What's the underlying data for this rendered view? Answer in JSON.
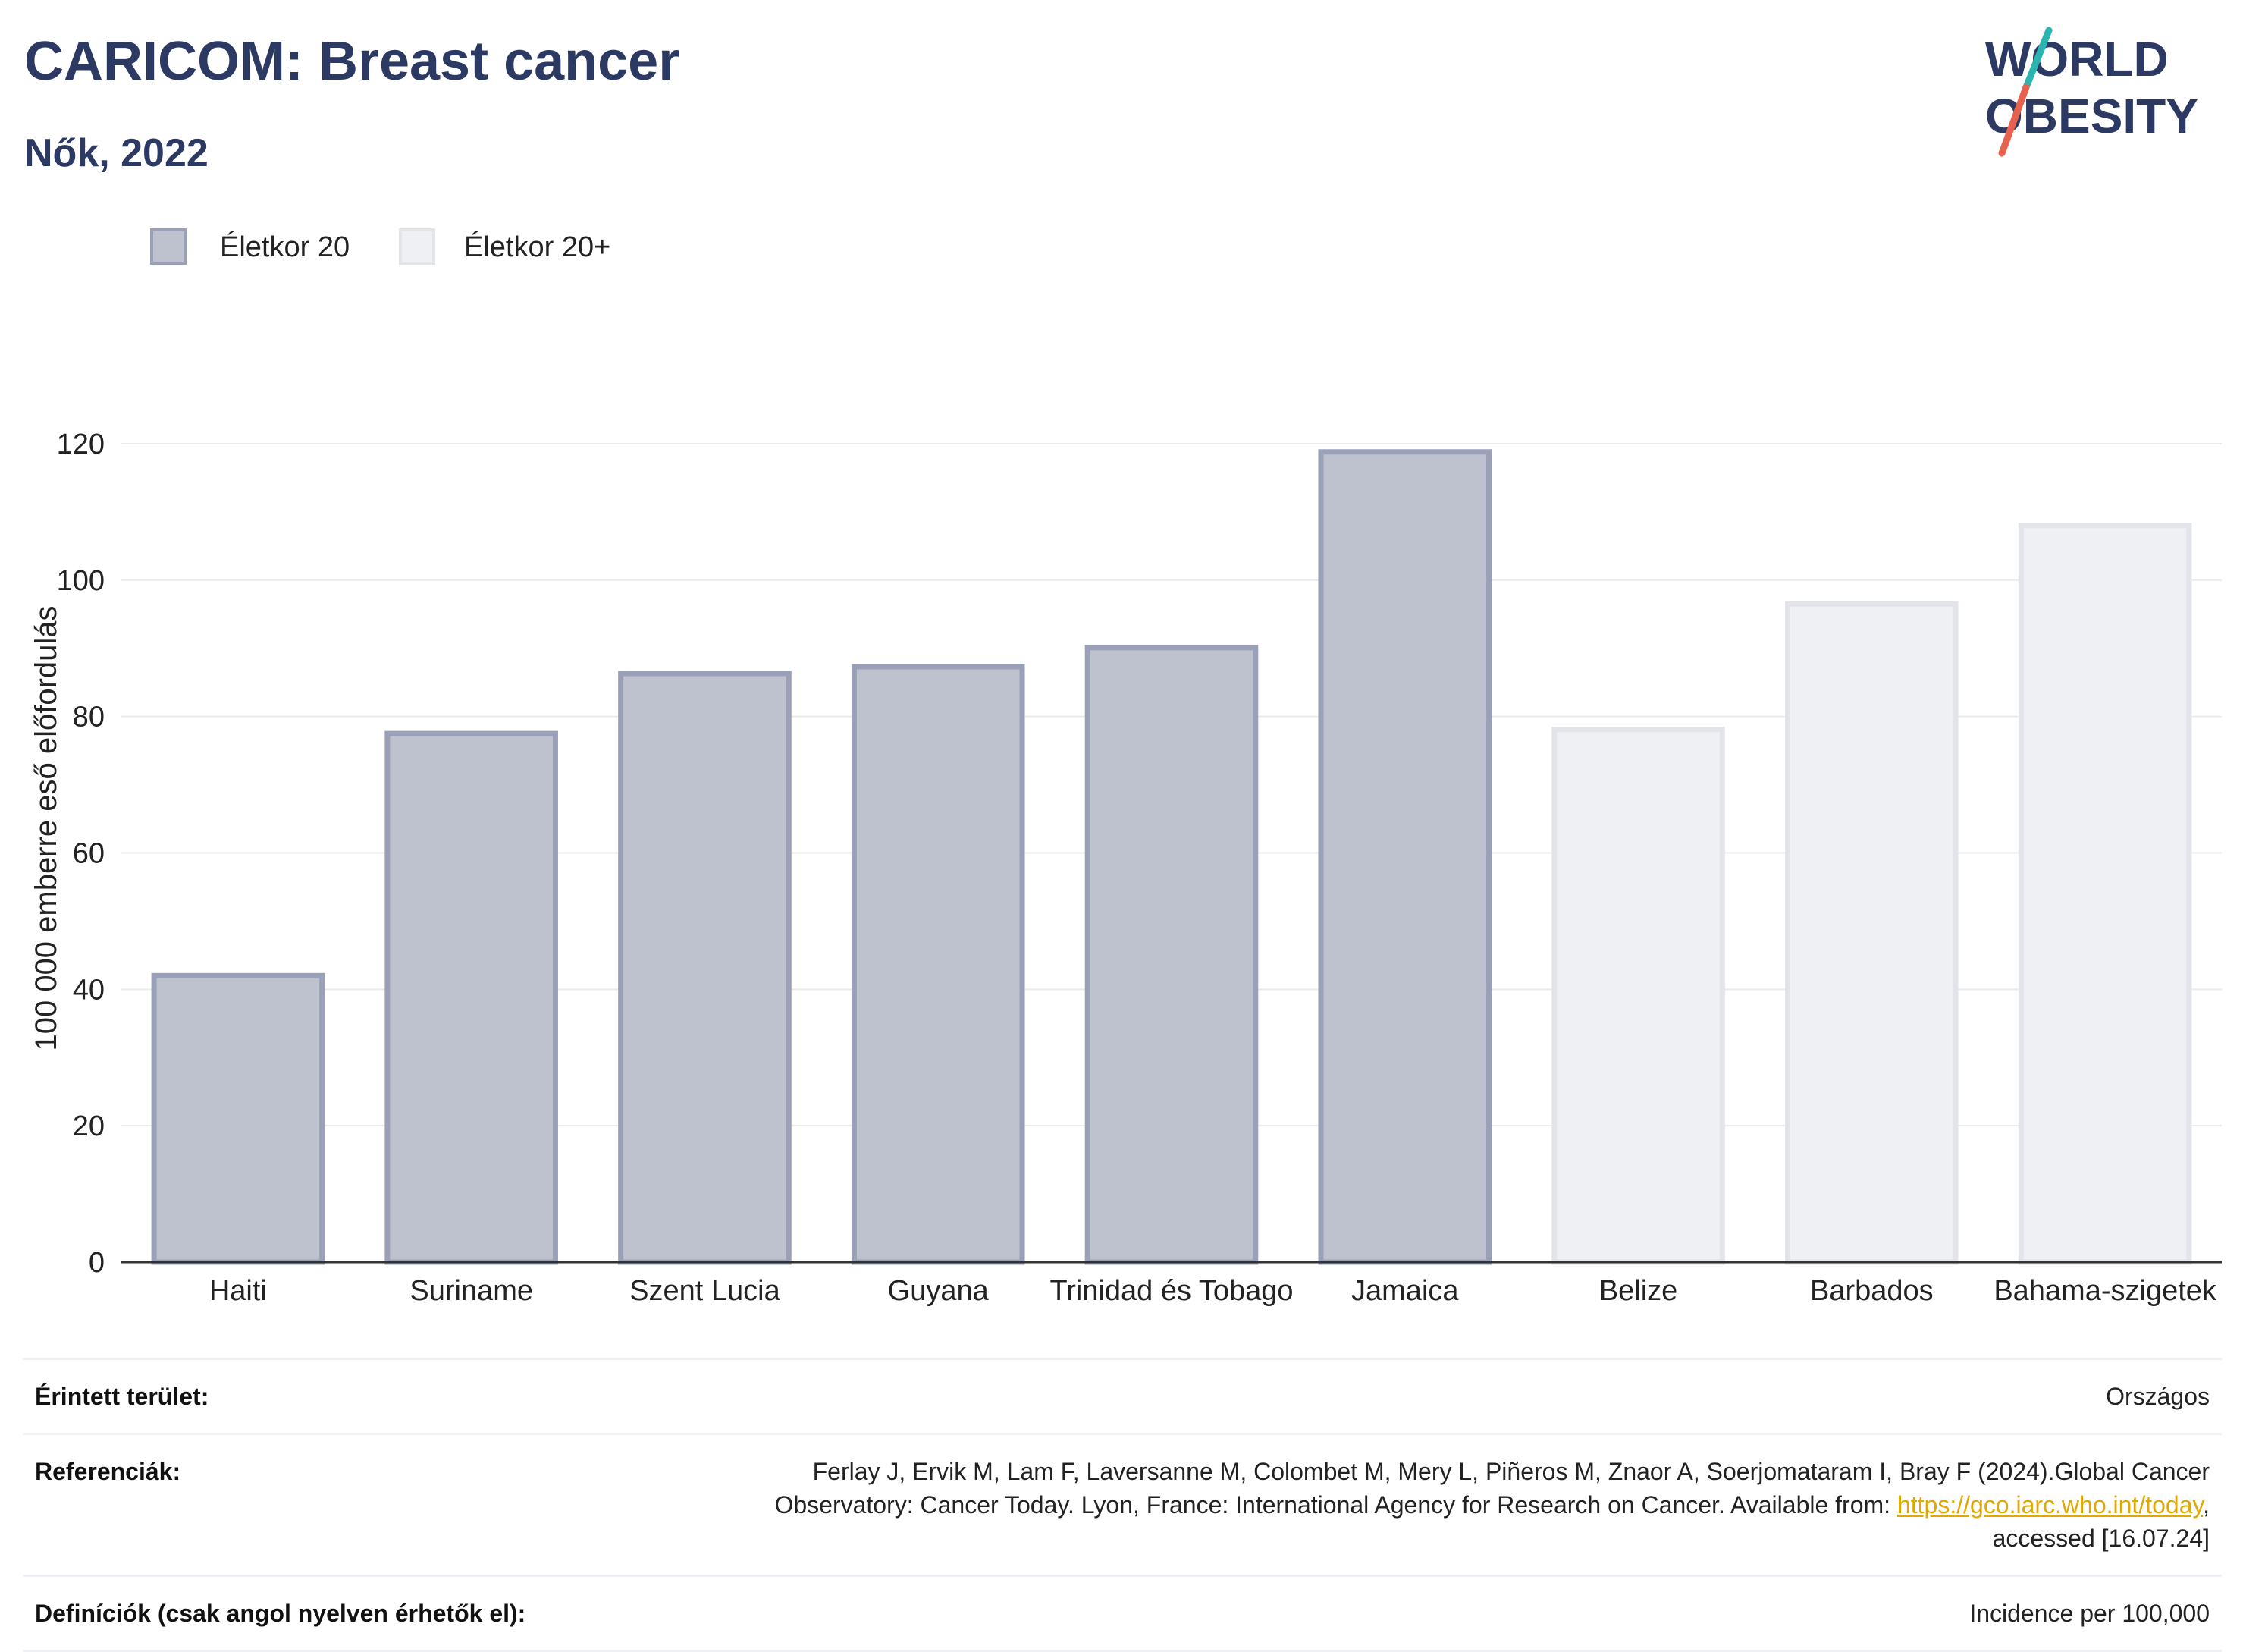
{
  "title": "CARICOM: Breast cancer",
  "subtitle": "Nők, 2022",
  "logo": {
    "line1": "WORLD",
    "line2": "OBESITY",
    "accent_colors": [
      "#2bb5b0",
      "#e8614f"
    ]
  },
  "chart_data": {
    "type": "bar",
    "ylabel": "100 000 emberre eső előfordulás",
    "xlabel": "",
    "ylim": [
      0,
      125
    ],
    "yticks": [
      0,
      20,
      40,
      60,
      80,
      100,
      120
    ],
    "grid": true,
    "legend_position": "top-left",
    "legend": [
      {
        "name": "Életkor 20",
        "color": "#bec2cf",
        "border": "#9aa0b8"
      },
      {
        "name": "Életkor 20+",
        "color": "#eff0f4",
        "border": "#e2e4ea"
      }
    ],
    "categories": [
      "Haiti",
      "Suriname",
      "Szent Lucia",
      "Guyana",
      "Trinidad és Tobago",
      "Jamaica",
      "Belize",
      "Barbados",
      "Bahama-szigetek"
    ],
    "values": [
      42,
      77.5,
      86.3,
      87.3,
      90.1,
      118.8,
      78.1,
      96.5,
      108
    ],
    "groups": [
      "Életkor 20",
      "Életkor 20",
      "Életkor 20",
      "Életkor 20",
      "Életkor 20",
      "Életkor 20",
      "Életkor 20+",
      "Életkor 20+",
      "Életkor 20+"
    ]
  },
  "footer": {
    "rows": [
      {
        "label": "Érintett terület:",
        "value": "Országos"
      },
      {
        "label": "Referenciák:",
        "value_line1": "Ferlay J, Ervik M, Lam F, Laversanne M, Colombet M, Mery L, Piñeros M, Znaor A, Soerjomataram I, Bray F (2024).Global Cancer",
        "value_line2": "Observatory: Cancer Today. Lyon, France: International Agency for Research on Cancer. Available from: ",
        "link": "https://gco.iarc.who.int/today",
        "value_line2_end": ",",
        "value_line3": "accessed [16.07.24]"
      },
      {
        "label": "Definíciók (csak angol nyelven érhetők el):",
        "value": "Incidence per 100,000"
      }
    ]
  }
}
